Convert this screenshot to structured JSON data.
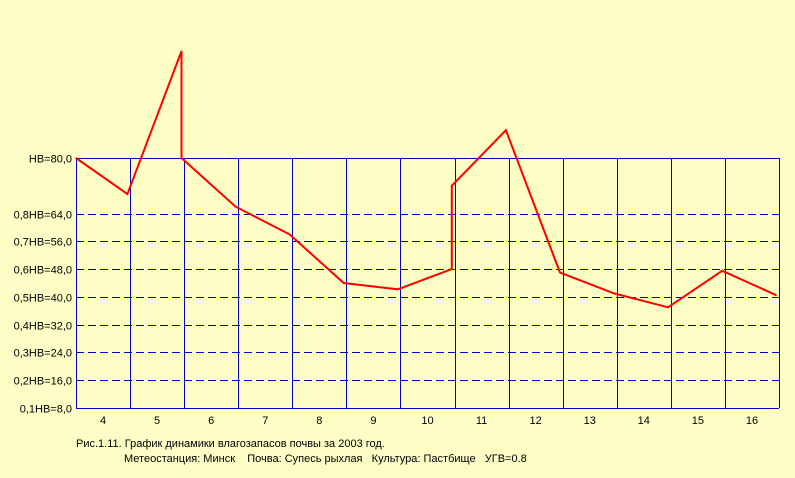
{
  "chart_data": {
    "type": "line",
    "y_ticks": [
      {
        "value": 80,
        "label": "НВ=80,0",
        "style": "solid"
      },
      {
        "value": 64,
        "label": "0,8НВ=64,0",
        "style": "dashed"
      },
      {
        "value": 56,
        "label": "0,7НВ=56,0",
        "style": "dashed"
      },
      {
        "value": 48,
        "label": "0,6НВ=48,0",
        "style": "dashed"
      },
      {
        "value": 40,
        "label": "0,5НВ=40,0",
        "style": "dashed"
      },
      {
        "value": 32,
        "label": "0,4НВ=32,0",
        "style": "dashed"
      },
      {
        "value": 24,
        "label": "0,3НВ=24,0",
        "style": "dashed"
      },
      {
        "value": 16,
        "label": "0,2НВ=16,0",
        "style": "dashed"
      },
      {
        "value": 8,
        "label": "0,1НВ=8,0",
        "style": "solid"
      }
    ],
    "ylim": [
      8,
      80
    ],
    "xlim": [
      3.5,
      16.5
    ],
    "x_ticks": [
      "4",
      "5",
      "6",
      "7",
      "8",
      "9",
      "10",
      "11",
      "12",
      "13",
      "14",
      "15",
      "16"
    ],
    "series": [
      {
        "color": "#ff0000",
        "points": [
          [
            3.5,
            80.0
          ],
          [
            4.45,
            69.6
          ],
          [
            5.45,
            110.8
          ],
          [
            5.45,
            80.0
          ],
          [
            6.45,
            66.0
          ],
          [
            7.45,
            58.0
          ],
          [
            8.45,
            44.0
          ],
          [
            9.45,
            42.2
          ],
          [
            10.45,
            48.0
          ],
          [
            10.45,
            72.0
          ],
          [
            11.45,
            88.0
          ],
          [
            12.45,
            47.0
          ],
          [
            13.45,
            41.0
          ],
          [
            14.45,
            37.0
          ],
          [
            15.45,
            47.5
          ],
          [
            16.45,
            40.5
          ]
        ]
      }
    ],
    "grid": true,
    "grid_color": "#0000c0"
  },
  "caption": {
    "line1": "Рис.1.11. График динамики влагозапасов почвы за 2003 год.",
    "line2": "Метеостанция: Минск    Почва: Супесь рыхлая   Культура: Пастбище   УГВ=0.8"
  }
}
